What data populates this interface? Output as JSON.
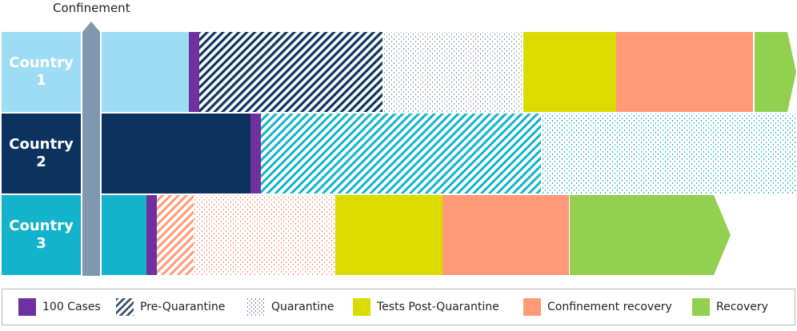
{
  "confinement_label": "Confinement",
  "countries": [
    {
      "line1": "Country",
      "line2": "1"
    },
    {
      "line1": "Country",
      "line2": "2"
    },
    {
      "line1": "Country",
      "line2": "3"
    }
  ],
  "colors": {
    "country1": "#9edcf3",
    "country2": "#0c3360",
    "country3": "#14b3cc",
    "cases_100": "#7030a0",
    "tests_post_quarantine": "#dcdb00",
    "confinement_recovery": "#ff9977",
    "recovery": "#92d050",
    "confinement_bar": "#7f98b0"
  },
  "legend": [
    {
      "label": "100 Cases",
      "pattern": "solid",
      "color": "#7030a0"
    },
    {
      "label": "Pre-Quarantine",
      "pattern": "diagonal",
      "color": "#0c3360"
    },
    {
      "label": "Quarantine",
      "pattern": "dots",
      "color": "#5b8fb0"
    },
    {
      "label": "Tests Post-Quarantine",
      "pattern": "solid",
      "color": "#dcdb00"
    },
    {
      "label": "Confinement recovery",
      "pattern": "solid",
      "color": "#ff9977"
    },
    {
      "label": "Recovery",
      "pattern": "solid",
      "color": "#92d050"
    }
  ]
}
